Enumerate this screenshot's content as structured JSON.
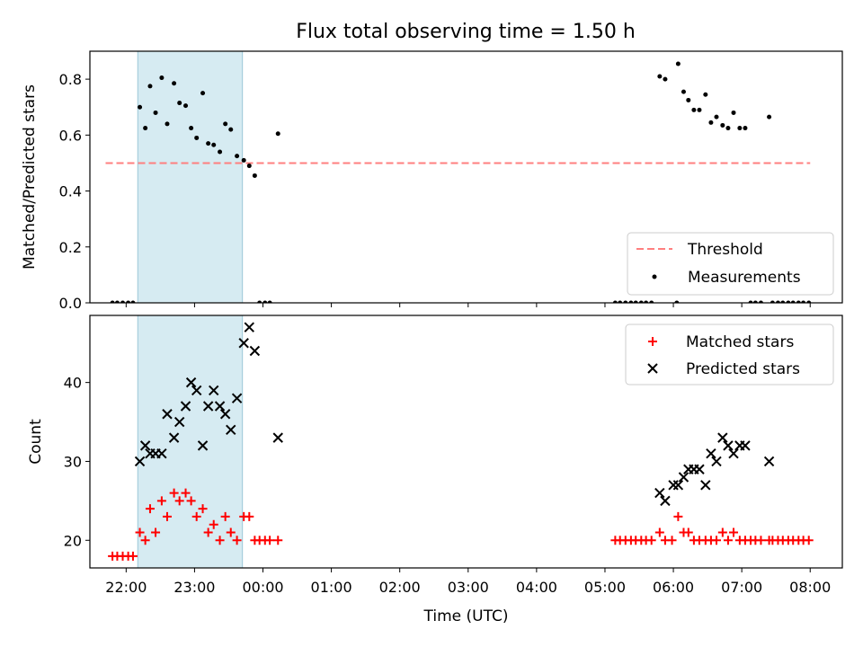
{
  "title": "Flux total observing time = 1.50 h",
  "chart_data": [
    {
      "type": "scatter",
      "ylabel": "Matched/Predicted stars",
      "ylim": [
        0,
        0.9
      ],
      "yticks": [
        0.0,
        0.2,
        0.4,
        0.6,
        0.8
      ],
      "ytick_labels": [
        "0.0",
        "0.2",
        "0.4",
        "0.6",
        "0.8"
      ],
      "xlim_hours": [
        -2.53,
        8.47
      ],
      "shaded_span_hours": [
        -1.83,
        -0.3
      ],
      "threshold": {
        "name": "Threshold",
        "value": 0.5,
        "x_range_hours": [
          -2.3,
          8.0
        ],
        "color": "#ff7f7f"
      },
      "series": [
        {
          "name": "Measurements",
          "color": "#000000",
          "points": [
            [
              -2.2,
              0
            ],
            [
              -2.13,
              0
            ],
            [
              -2.05,
              0
            ],
            [
              -1.97,
              0
            ],
            [
              -1.9,
              0
            ],
            [
              -1.8,
              0.7
            ],
            [
              -1.72,
              0.625
            ],
            [
              -1.65,
              0.775
            ],
            [
              -1.57,
              0.68
            ],
            [
              -1.48,
              0.805
            ],
            [
              -1.4,
              0.64
            ],
            [
              -1.3,
              0.785
            ],
            [
              -1.22,
              0.715
            ],
            [
              -1.13,
              0.705
            ],
            [
              -1.05,
              0.625
            ],
            [
              -0.97,
              0.59
            ],
            [
              -0.88,
              0.75
            ],
            [
              -0.8,
              0.57
            ],
            [
              -0.72,
              0.565
            ],
            [
              -0.63,
              0.54
            ],
            [
              -0.55,
              0.64
            ],
            [
              -0.47,
              0.62
            ],
            [
              -0.38,
              0.525
            ],
            [
              -0.28,
              0.51
            ],
            [
              -0.2,
              0.49
            ],
            [
              -0.12,
              0.455
            ],
            [
              -0.05,
              0
            ],
            [
              0.03,
              0
            ],
            [
              0.1,
              0
            ],
            [
              0.22,
              0.605
            ],
            [
              5.15,
              0
            ],
            [
              5.22,
              0
            ],
            [
              5.3,
              0
            ],
            [
              5.38,
              0
            ],
            [
              5.45,
              0
            ],
            [
              5.53,
              0
            ],
            [
              5.6,
              0
            ],
            [
              5.68,
              0
            ],
            [
              5.8,
              0.81
            ],
            [
              5.88,
              0.8
            ],
            [
              6.05,
              0
            ],
            [
              6.07,
              0.855
            ],
            [
              6.15,
              0.755
            ],
            [
              6.22,
              0.725
            ],
            [
              6.3,
              0.69
            ],
            [
              6.38,
              0.69
            ],
            [
              6.47,
              0.745
            ],
            [
              6.55,
              0.645
            ],
            [
              6.63,
              0.665
            ],
            [
              6.72,
              0.635
            ],
            [
              6.8,
              0.625
            ],
            [
              6.88,
              0.68
            ],
            [
              6.97,
              0.625
            ],
            [
              7.05,
              0.625
            ],
            [
              7.13,
              0
            ],
            [
              7.2,
              0
            ],
            [
              7.28,
              0
            ],
            [
              7.4,
              0.665
            ],
            [
              7.45,
              0
            ],
            [
              7.53,
              0
            ],
            [
              7.6,
              0
            ],
            [
              7.68,
              0
            ],
            [
              7.75,
              0
            ],
            [
              7.83,
              0
            ],
            [
              7.9,
              0
            ],
            [
              7.98,
              0
            ]
          ]
        }
      ],
      "legend": {
        "placement": "lower right",
        "entries": [
          "Threshold",
          "Measurements"
        ]
      }
    },
    {
      "type": "scatter",
      "xlabel": "Time (UTC)",
      "ylabel": "Count",
      "ylim": [
        16.5,
        48.5
      ],
      "yticks": [
        20,
        30,
        40
      ],
      "ytick_labels": [
        "20",
        "30",
        "40"
      ],
      "xlim_hours": [
        -2.53,
        8.47
      ],
      "xticks_hours": [
        -2,
        -1,
        0,
        1,
        2,
        3,
        4,
        5,
        6,
        7,
        8
      ],
      "xtick_labels": [
        "22:00",
        "23:00",
        "00:00",
        "01:00",
        "02:00",
        "03:00",
        "04:00",
        "05:00",
        "06:00",
        "07:00",
        "08:00"
      ],
      "shaded_span_hours": [
        -1.83,
        -0.3
      ],
      "series": [
        {
          "name": "Matched stars",
          "marker": "plus",
          "color": "#ff0000",
          "points": [
            [
              -2.2,
              18
            ],
            [
              -2.13,
              18
            ],
            [
              -2.05,
              18
            ],
            [
              -1.97,
              18
            ],
            [
              -1.9,
              18
            ],
            [
              -1.8,
              21
            ],
            [
              -1.72,
              20
            ],
            [
              -1.65,
              24
            ],
            [
              -1.57,
              21
            ],
            [
              -1.48,
              25
            ],
            [
              -1.4,
              23
            ],
            [
              -1.3,
              26
            ],
            [
              -1.22,
              25
            ],
            [
              -1.13,
              26
            ],
            [
              -1.05,
              25
            ],
            [
              -0.97,
              23
            ],
            [
              -0.88,
              24
            ],
            [
              -0.8,
              21
            ],
            [
              -0.72,
              22
            ],
            [
              -0.63,
              20
            ],
            [
              -0.55,
              23
            ],
            [
              -0.47,
              21
            ],
            [
              -0.38,
              20
            ],
            [
              -0.28,
              23
            ],
            [
              -0.2,
              23
            ],
            [
              -0.12,
              20
            ],
            [
              -0.05,
              20
            ],
            [
              0.03,
              20
            ],
            [
              0.1,
              20
            ],
            [
              0.22,
              20
            ],
            [
              5.15,
              20
            ],
            [
              5.22,
              20
            ],
            [
              5.3,
              20
            ],
            [
              5.38,
              20
            ],
            [
              5.45,
              20
            ],
            [
              5.53,
              20
            ],
            [
              5.6,
              20
            ],
            [
              5.68,
              20
            ],
            [
              5.8,
              21
            ],
            [
              5.88,
              20
            ],
            [
              5.98,
              20
            ],
            [
              6.07,
              23
            ],
            [
              6.15,
              21
            ],
            [
              6.22,
              21
            ],
            [
              6.3,
              20
            ],
            [
              6.38,
              20
            ],
            [
              6.47,
              20
            ],
            [
              6.55,
              20
            ],
            [
              6.63,
              20
            ],
            [
              6.72,
              21
            ],
            [
              6.8,
              20
            ],
            [
              6.88,
              21
            ],
            [
              6.97,
              20
            ],
            [
              7.05,
              20
            ],
            [
              7.13,
              20
            ],
            [
              7.2,
              20
            ],
            [
              7.28,
              20
            ],
            [
              7.4,
              20
            ],
            [
              7.45,
              20
            ],
            [
              7.53,
              20
            ],
            [
              7.6,
              20
            ],
            [
              7.68,
              20
            ],
            [
              7.75,
              20
            ],
            [
              7.83,
              20
            ],
            [
              7.9,
              20
            ],
            [
              7.98,
              20
            ]
          ]
        },
        {
          "name": "Predicted stars",
          "marker": "x",
          "color": "#000000",
          "points": [
            [
              -1.8,
              30
            ],
            [
              -1.72,
              32
            ],
            [
              -1.65,
              31
            ],
            [
              -1.57,
              31
            ],
            [
              -1.48,
              31
            ],
            [
              -1.4,
              36
            ],
            [
              -1.3,
              33
            ],
            [
              -1.22,
              35
            ],
            [
              -1.13,
              37
            ],
            [
              -1.05,
              40
            ],
            [
              -0.97,
              39
            ],
            [
              -0.88,
              32
            ],
            [
              -0.8,
              37
            ],
            [
              -0.72,
              39
            ],
            [
              -0.63,
              37
            ],
            [
              -0.55,
              36
            ],
            [
              -0.47,
              34
            ],
            [
              -0.38,
              38
            ],
            [
              -0.28,
              45
            ],
            [
              -0.2,
              47
            ],
            [
              -0.12,
              44
            ],
            [
              0.22,
              33
            ],
            [
              5.8,
              26
            ],
            [
              5.88,
              25
            ],
            [
              6.0,
              27
            ],
            [
              6.07,
              27
            ],
            [
              6.15,
              28
            ],
            [
              6.22,
              29
            ],
            [
              6.3,
              29
            ],
            [
              6.38,
              29
            ],
            [
              6.47,
              27
            ],
            [
              6.55,
              31
            ],
            [
              6.63,
              30
            ],
            [
              6.72,
              33
            ],
            [
              6.8,
              32
            ],
            [
              6.88,
              31
            ],
            [
              6.97,
              32
            ],
            [
              7.05,
              32
            ],
            [
              7.4,
              30
            ]
          ]
        }
      ],
      "legend": {
        "placement": "upper right",
        "entries": [
          "Matched stars",
          "Predicted stars"
        ]
      }
    }
  ]
}
